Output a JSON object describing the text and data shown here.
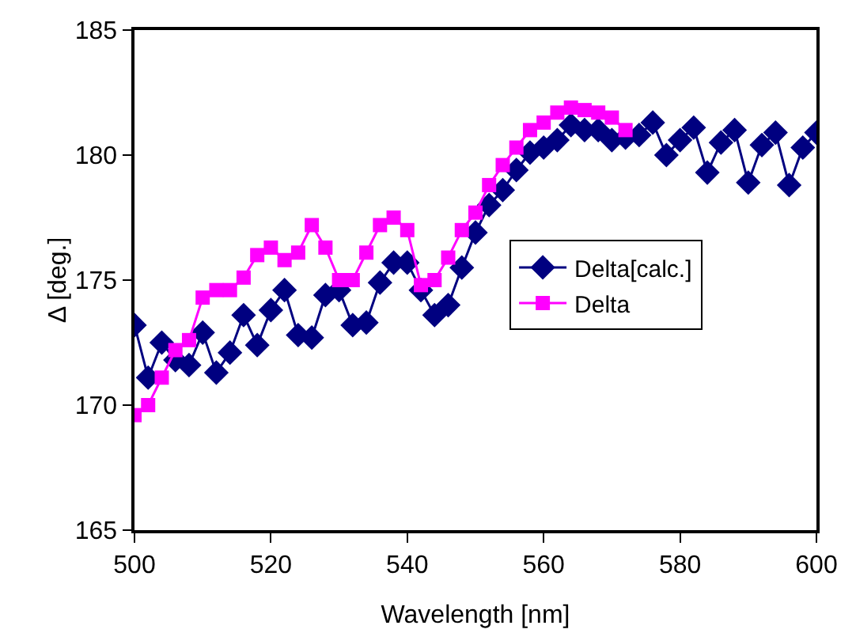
{
  "chart_data": {
    "type": "line",
    "xlabel": "Wavelength [nm]",
    "ylabel": "Δ [deg.]",
    "xlim": [
      500,
      600
    ],
    "xticks": [
      500,
      520,
      540,
      560,
      580,
      600
    ],
    "ylim": [
      165,
      185
    ],
    "yticks": [
      165,
      170,
      175,
      180,
      185
    ],
    "grid": false,
    "legend": "right",
    "series": [
      {
        "name": "Delta[calc.]",
        "color": "#000080",
        "marker": "diamond",
        "x": [
          500,
          502,
          504,
          506,
          508,
          510,
          512,
          514,
          516,
          518,
          520,
          522,
          524,
          526,
          528,
          530,
          532,
          534,
          536,
          538,
          540,
          542,
          544,
          546,
          548,
          550,
          552,
          554,
          556,
          558,
          560,
          562,
          564,
          566,
          568,
          570,
          572,
          574,
          576,
          578,
          580,
          582,
          584,
          586,
          588,
          590,
          592,
          594,
          596,
          598,
          600
        ],
        "values": [
          173.2,
          171.1,
          172.5,
          171.8,
          171.6,
          172.9,
          171.3,
          172.1,
          173.6,
          172.4,
          173.8,
          174.6,
          172.8,
          172.7,
          174.4,
          174.6,
          173.2,
          173.3,
          174.9,
          175.7,
          175.7,
          174.6,
          173.6,
          174.0,
          175.5,
          176.9,
          178.0,
          178.6,
          179.4,
          180.1,
          180.3,
          180.6,
          181.2,
          181.0,
          181.0,
          180.6,
          180.7,
          180.8,
          181.3,
          180.0,
          180.6,
          181.1,
          179.3,
          180.5,
          181.0,
          178.9,
          180.4,
          180.9,
          178.8,
          180.3,
          180.9
        ]
      },
      {
        "name": "Delta",
        "color": "#ff00ff",
        "marker": "square",
        "x": [
          500,
          502,
          504,
          506,
          508,
          510,
          512,
          514,
          516,
          518,
          520,
          522,
          524,
          526,
          528,
          530,
          532,
          534,
          536,
          538,
          540,
          542,
          544,
          546,
          548,
          550,
          552,
          554,
          556,
          558,
          560,
          562,
          564,
          566,
          568,
          570,
          572
        ],
        "values": [
          169.6,
          170.0,
          171.1,
          172.2,
          172.6,
          174.3,
          174.6,
          174.6,
          175.1,
          176.0,
          176.3,
          175.8,
          176.1,
          177.2,
          176.3,
          175.0,
          175.0,
          176.1,
          177.2,
          177.5,
          177.0,
          174.8,
          175.0,
          175.9,
          177.0,
          177.7,
          178.8,
          179.6,
          180.3,
          181.0,
          181.3,
          181.7,
          181.9,
          181.8,
          181.7,
          181.5,
          181.0
        ]
      }
    ]
  }
}
